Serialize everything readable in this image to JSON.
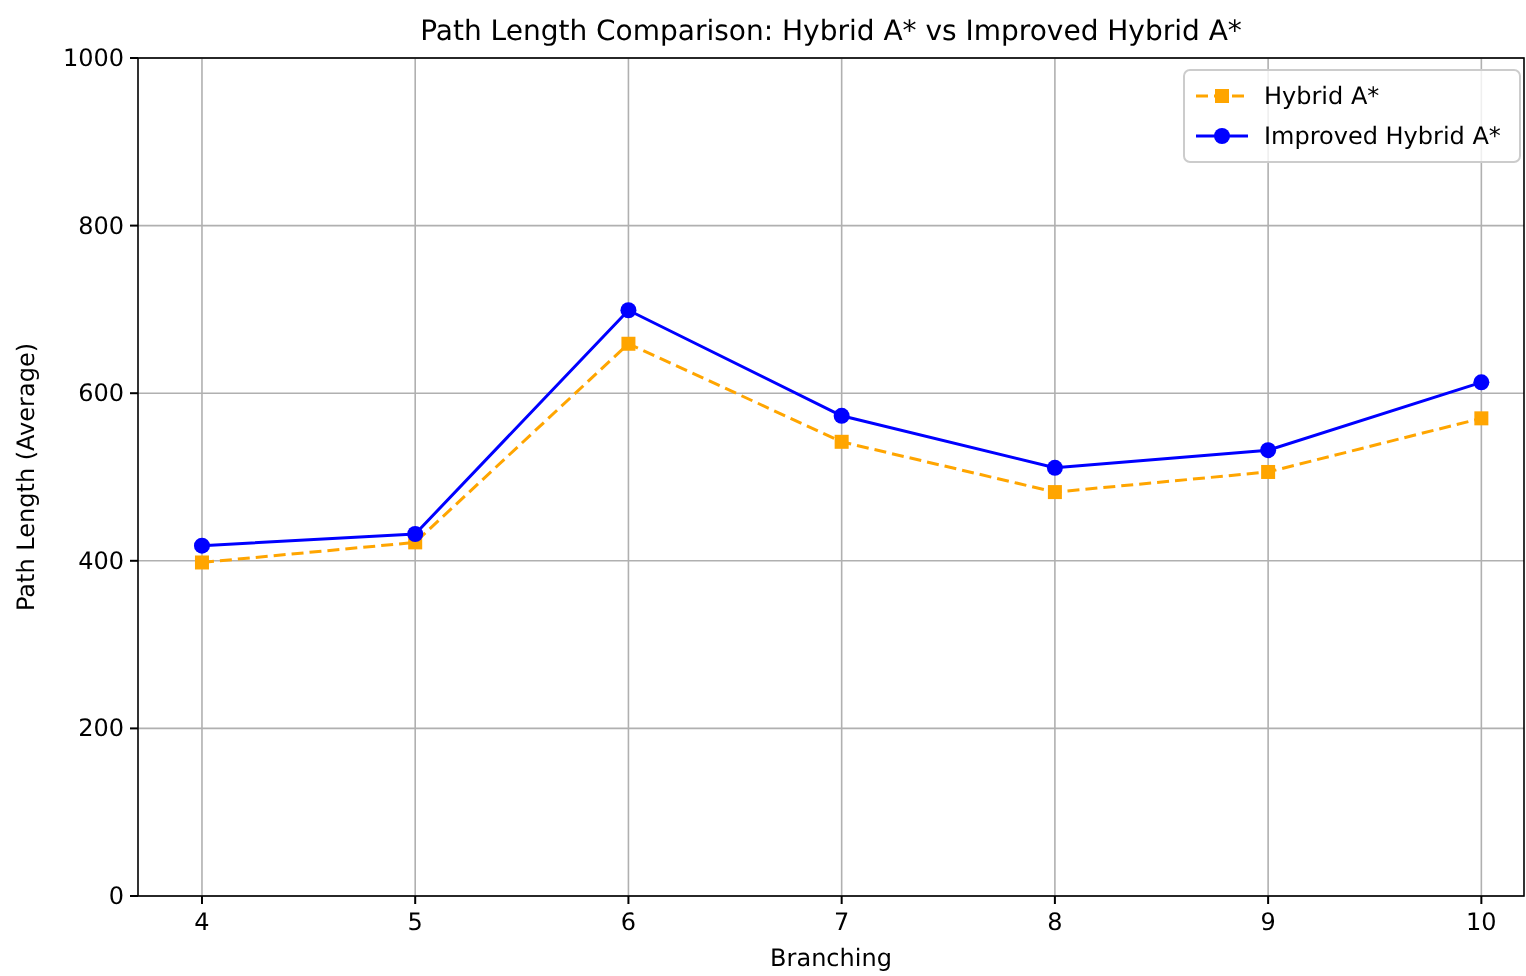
{
  "chart_data": {
    "type": "line",
    "title": "Path Length Comparison: Hybrid A* vs Improved Hybrid A*",
    "xlabel": "Branching",
    "ylabel": "Path Length (Average)",
    "x": [
      4,
      5,
      6,
      7,
      8,
      9,
      10
    ],
    "series": [
      {
        "name": "Hybrid A*",
        "color": "#ffa500",
        "values": [
          398,
          422,
          659,
          542,
          482,
          506,
          570
        ],
        "marker": "square",
        "line_style": "dashed"
      },
      {
        "name": "Improved Hybrid A*",
        "color": "#0000ff",
        "values": [
          418,
          432,
          699,
          573,
          511,
          532,
          613
        ],
        "marker": "circle",
        "line_style": "solid"
      }
    ],
    "xlim": [
      3.7,
      10.2
    ],
    "xticks": [
      4,
      5,
      6,
      7,
      8,
      9,
      10
    ],
    "ylim": [
      0,
      1000
    ],
    "yticks": [
      0,
      200,
      400,
      600,
      800,
      1000
    ],
    "grid": true,
    "legend": "top right"
  }
}
